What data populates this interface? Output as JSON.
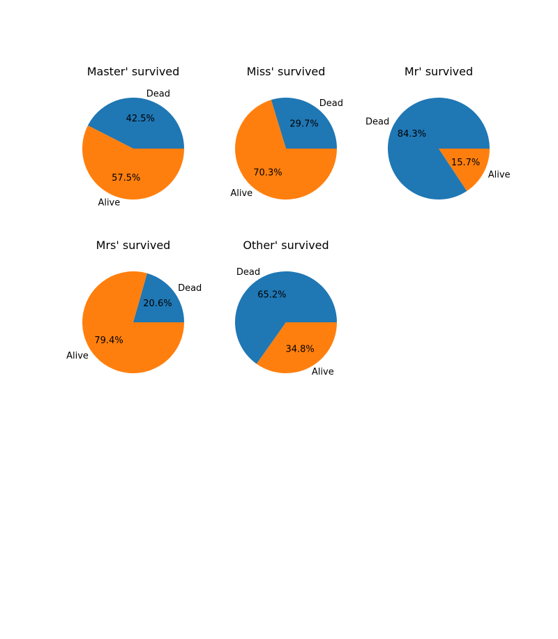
{
  "colors": {
    "dead": "#1f77b4",
    "alive": "#ff7f0e",
    "text": "#000000",
    "background": "#ffffff"
  },
  "chart_data": [
    {
      "type": "pie",
      "title": "Master' survived",
      "labels": [
        "Dead",
        "Alive"
      ],
      "values": [
        42.5,
        57.5
      ],
      "autopct": [
        "42.5%",
        "57.5%"
      ]
    },
    {
      "type": "pie",
      "title": "Miss' survived",
      "labels": [
        "Dead",
        "Alive"
      ],
      "values": [
        29.7,
        70.3
      ],
      "autopct": [
        "29.7%",
        "70.3%"
      ]
    },
    {
      "type": "pie",
      "title": "Mr' survived",
      "labels": [
        "Dead",
        "Alive"
      ],
      "values": [
        84.3,
        15.7
      ],
      "autopct": [
        "84.3%",
        "15.7%"
      ]
    },
    {
      "type": "pie",
      "title": "Mrs' survived",
      "labels": [
        "Dead",
        "Alive"
      ],
      "values": [
        20.6,
        79.4
      ],
      "autopct": [
        "20.6%",
        "79.4%"
      ]
    },
    {
      "type": "pie",
      "title": "Other' survived",
      "labels": [
        "Dead",
        "Alive"
      ],
      "values": [
        65.2,
        34.8
      ],
      "autopct": [
        "65.2%",
        "34.8%"
      ]
    }
  ]
}
